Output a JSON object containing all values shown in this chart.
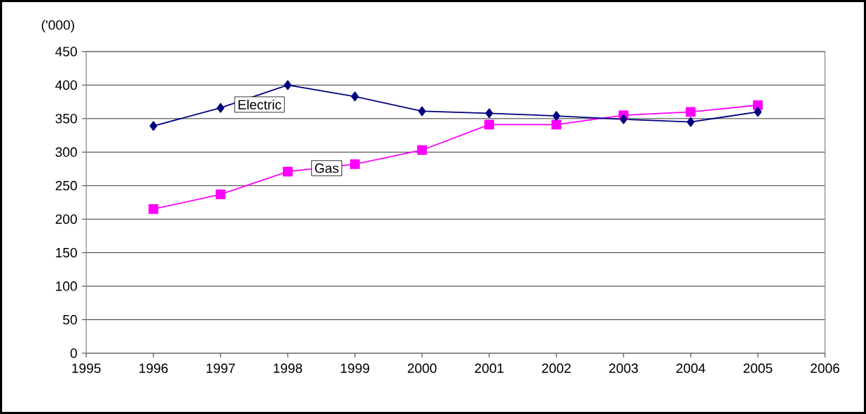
{
  "chart_data": {
    "type": "line",
    "ylabel": "('000)",
    "x": [
      1996,
      1997,
      1998,
      1999,
      2000,
      2001,
      2002,
      2003,
      2004,
      2005
    ],
    "series": [
      {
        "name": "Electric",
        "color": "#000080",
        "marker": "diamond",
        "values": [
          339,
          366,
          400,
          383,
          361,
          358,
          354,
          349,
          345,
          360
        ]
      },
      {
        "name": "Gas",
        "color": "#ff00ff",
        "marker": "square",
        "values": [
          215,
          237,
          271,
          282,
          303,
          341,
          341,
          355,
          360,
          370
        ]
      }
    ],
    "xlim": [
      1995,
      2006
    ],
    "xticks": [
      1995,
      1996,
      1997,
      1998,
      1999,
      2000,
      2001,
      2002,
      2003,
      2004,
      2005,
      2006
    ],
    "ylim": [
      0,
      450
    ],
    "yticks": [
      0,
      50,
      100,
      150,
      200,
      250,
      300,
      350,
      400,
      450
    ],
    "grid": "y",
    "legend": false,
    "line_style": "solid"
  }
}
